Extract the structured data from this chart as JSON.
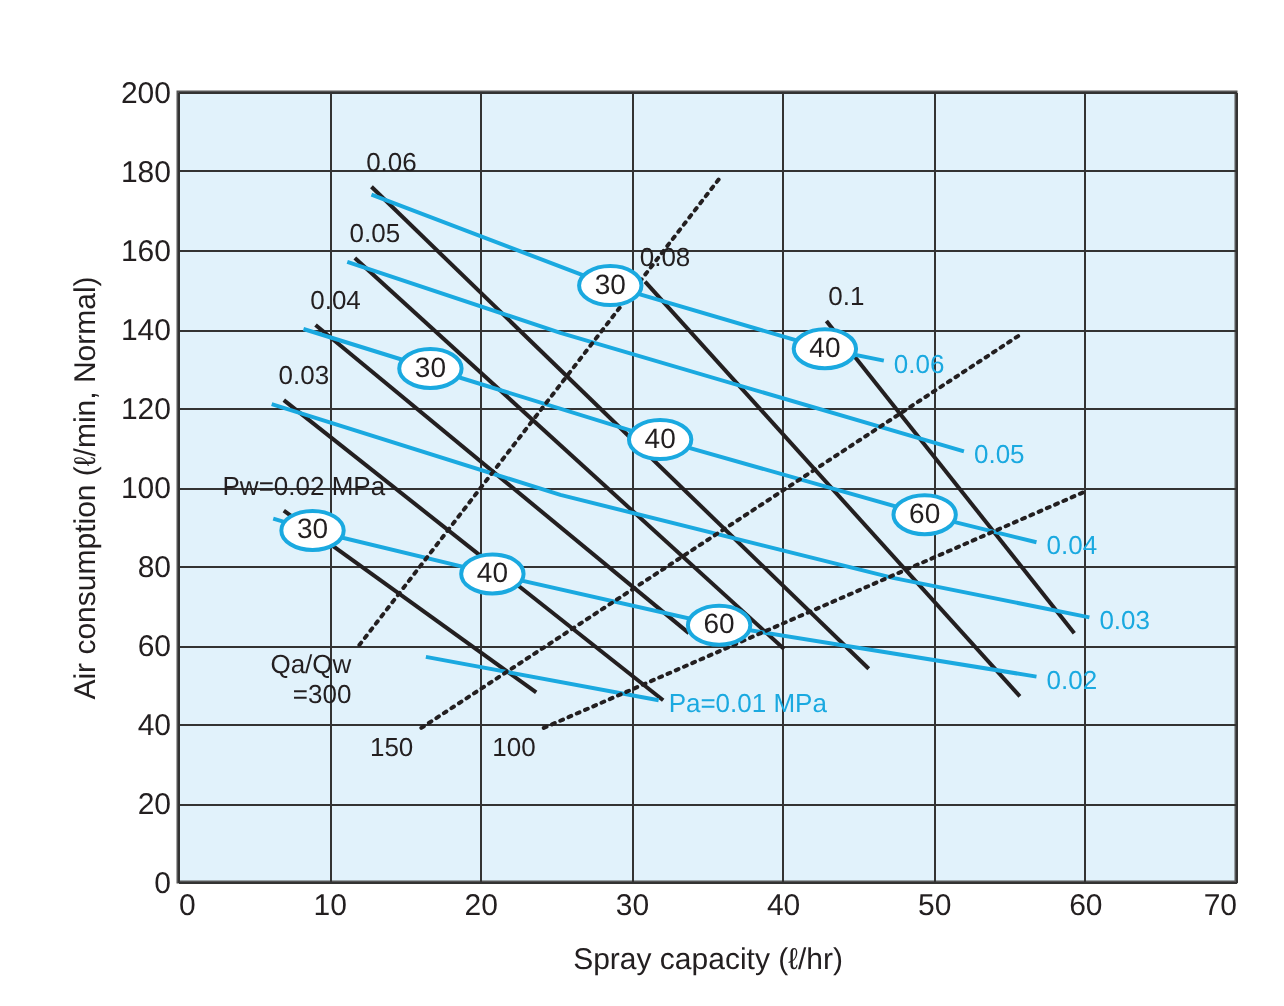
{
  "chart_data": {
    "type": "line",
    "xlabel": "Spray capacity (ℓ/hr)",
    "ylabel": "Air consumption (ℓ/min, Normal)",
    "xlim": [
      0,
      70
    ],
    "xticks": [
      0,
      10,
      20,
      30,
      40,
      50,
      60,
      70
    ],
    "ylim": [
      0,
      200
    ],
    "yticks": [
      0,
      20,
      40,
      60,
      80,
      100,
      120,
      140,
      160,
      180,
      200
    ],
    "grid": true,
    "series": [
      {
        "name": "Pw=0.02 MPa",
        "color": "#231f20",
        "x": [
          7.0,
          23.7
        ],
        "values": [
          94,
          48
        ]
      },
      {
        "name": "0.03",
        "color": "#231f20",
        "x": [
          7.0,
          32.1
        ],
        "values": [
          122,
          46
        ]
      },
      {
        "name": "0.04",
        "color": "#231f20",
        "x": [
          9.1,
          33.8
        ],
        "values": [
          141,
          63
        ]
      },
      {
        "name": "0.05",
        "color": "#231f20",
        "x": [
          11.7,
          40.1
        ],
        "values": [
          158,
          59
        ]
      },
      {
        "name": "0.06",
        "color": "#231f20",
        "x": [
          12.8,
          45.7
        ],
        "values": [
          176,
          54
        ]
      },
      {
        "name": "0.08",
        "color": "#231f20",
        "x": [
          30.9,
          55.7
        ],
        "values": [
          152,
          47
        ]
      },
      {
        "name": "0.1",
        "color": "#231f20",
        "x": [
          42.9,
          59.3
        ],
        "values": [
          142,
          63
        ]
      },
      {
        "name": "Pa=0.01 MPa",
        "color": "#1aa9e0",
        "x": [
          16.4,
          31.8
        ],
        "values": [
          57,
          46
        ]
      },
      {
        "name": "0.02",
        "color": "#1aa9e0",
        "x": [
          6.3,
          8.9,
          20.8,
          35.8,
          56.8
        ],
        "values": [
          92,
          89,
          78,
          65,
          52
        ]
      },
      {
        "name": "0.03",
        "color": "#1aa9e0",
        "x": [
          6.2,
          25.3,
          47.3,
          60.3
        ],
        "values": [
          121,
          98,
          77,
          67
        ]
      },
      {
        "name": "0.04",
        "color": "#1aa9e0",
        "x": [
          8.3,
          16.7,
          31.9,
          49.4,
          56.8
        ],
        "values": [
          140,
          130,
          112,
          93,
          86
        ]
      },
      {
        "name": "0.05",
        "color": "#1aa9e0",
        "x": [
          11.2,
          25.3,
          52.0
        ],
        "values": [
          157,
          139,
          109
        ]
      },
      {
        "name": "0.06",
        "color": "#1aa9e0",
        "x": [
          12.8,
          28.6,
          42.8,
          46.7
        ],
        "values": [
          174,
          151,
          135,
          132
        ]
      },
      {
        "name": "Qa/Qw =300",
        "color": "#231f20",
        "line_style": "dotted",
        "x": [
          12.0,
          36.0
        ],
        "values": [
          60,
          179
        ]
      },
      {
        "name": "150",
        "color": "#231f20",
        "line_style": "dotted",
        "x": [
          16.1,
          55.9
        ],
        "values": [
          39,
          139
        ]
      },
      {
        "name": "100",
        "color": "#231f20",
        "line_style": "dotted",
        "x": [
          24.2,
          60.1
        ],
        "values": [
          39,
          99
        ]
      }
    ],
    "annotations": [
      {
        "text": "30",
        "x": 8.9,
        "y": 89
      },
      {
        "text": "30",
        "x": 16.7,
        "y": 130
      },
      {
        "text": "30",
        "x": 28.6,
        "y": 151
      },
      {
        "text": "40",
        "x": 20.8,
        "y": 78
      },
      {
        "text": "40",
        "x": 31.9,
        "y": 112
      },
      {
        "text": "40",
        "x": 42.8,
        "y": 135
      },
      {
        "text": "60",
        "x": 35.8,
        "y": 65
      },
      {
        "text": "60",
        "x": 49.4,
        "y": 93
      }
    ]
  }
}
